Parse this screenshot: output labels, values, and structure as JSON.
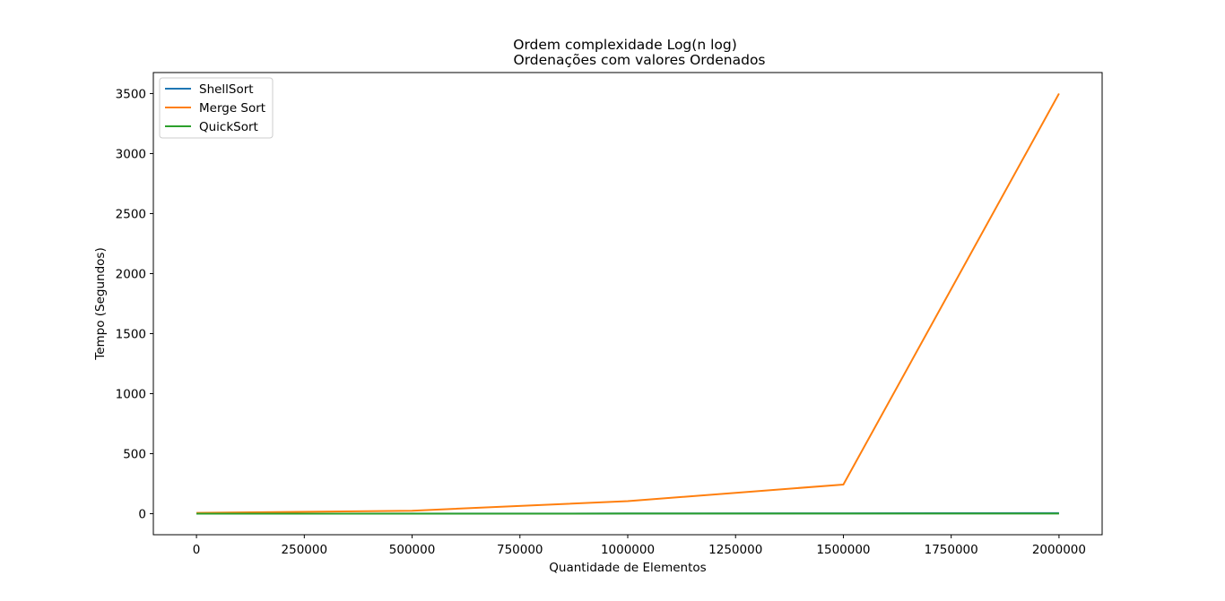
{
  "chart_data": {
    "type": "line",
    "title": "Ordem complexidade Log(n log)",
    "subtitle": "Ordenações com valores Ordenados",
    "xlabel": "Quantidade de Elementos",
    "ylabel": "Tempo (Segundos)",
    "x": [
      0,
      500000,
      1000000,
      1500000,
      2000000
    ],
    "xlim": [
      -100000,
      2100000
    ],
    "ylim": [
      -175,
      3675
    ],
    "xticks": [
      0,
      250000,
      500000,
      750000,
      1000000,
      1250000,
      1500000,
      1750000,
      2000000
    ],
    "yticks": [
      0,
      500,
      1000,
      1500,
      2000,
      2500,
      3000,
      3500
    ],
    "grid": false,
    "legend_position": "top-left",
    "series": [
      {
        "name": "ShellSort",
        "color": "#1f77b4",
        "values": [
          0,
          1,
          2,
          3,
          5
        ]
      },
      {
        "name": "Merge Sort",
        "color": "#ff7f0e",
        "values": [
          7,
          25,
          105,
          243,
          3500
        ]
      },
      {
        "name": "QuickSort",
        "color": "#2ca02c",
        "values": [
          0,
          0,
          1,
          1,
          1
        ]
      }
    ]
  }
}
